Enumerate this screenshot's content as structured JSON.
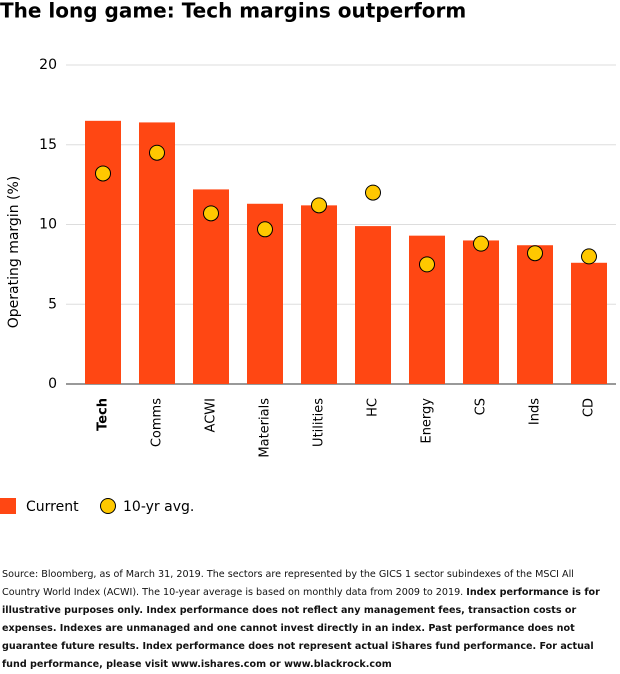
{
  "chart_data": {
    "type": "bar",
    "title": "The long game: Tech margins outperform",
    "y_label": "Operating margin (%)",
    "categories": [
      "Tech",
      "Comms",
      "ACWI",
      "Materials",
      "Utilities",
      "HC",
      "Energy",
      "CS",
      "Inds",
      "CD"
    ],
    "series": [
      {
        "name": "Current",
        "color": "#ff4713",
        "values": [
          16.5,
          16.4,
          12.2,
          11.3,
          11.2,
          9.9,
          9.3,
          9.0,
          8.7,
          7.6
        ]
      },
      {
        "name": "10-yr avg.",
        "color": "#ffc800",
        "values": [
          13.2,
          14.5,
          10.7,
          9.7,
          11.2,
          12.0,
          7.5,
          8.8,
          8.2,
          8.0
        ]
      }
    ],
    "ylim": [
      0,
      20
    ],
    "yticks": [
      0,
      5,
      10,
      15,
      20
    ],
    "grid": true,
    "source": [
      "Source: Bloomberg, as of March 31, 2019. The sectors are represented by the GICS 1 sector subindexes of the MSCI All Country World Index (ACWI). The 10-year average is based on monthly data from 2009 to 2019. ",
      "Index performance is for illustrative purposes only.  Index performance does not reflect any management fees, transaction costs or expenses. Indexes are unmanaged and one cannot invest directly in an index. Past performance does not guarantee future results. Index performance does not represent actual iShares fund performance. For actual fund performance, please visit www.ishares.com or www.blackrock.com"
    ]
  }
}
